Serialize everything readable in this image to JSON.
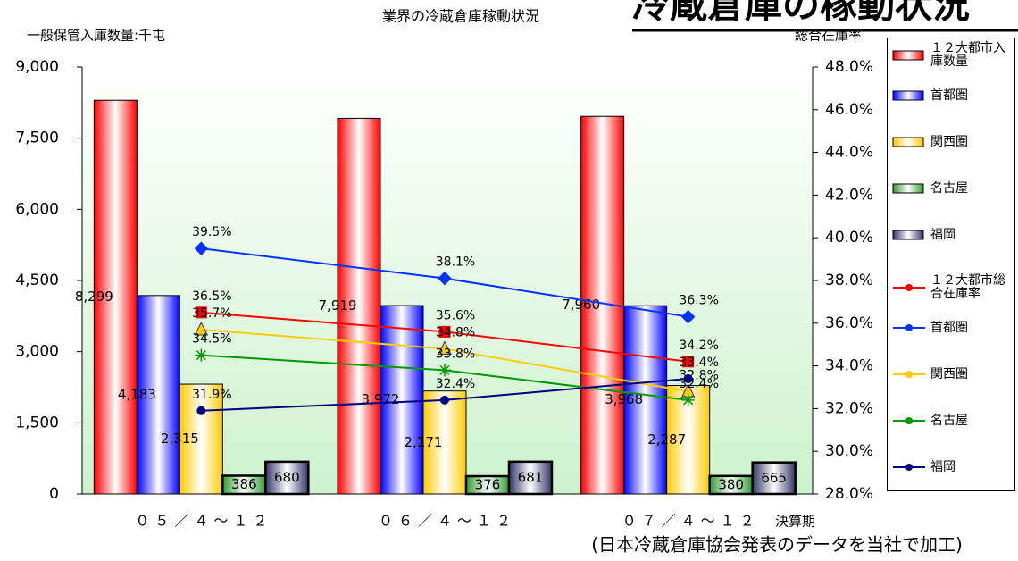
{
  "chart_data": {
    "type": "bar-line",
    "title": "冷蔵倉庫の稼動状況",
    "subtitle": "業界の冷蔵倉庫稼動状況",
    "ylabel": "一般保管入庫数量:千屯",
    "y2label": "総合在庫率",
    "xlabel": "決算期",
    "note": "(日本冷蔵倉庫協会発表のデータを当社で加工)",
    "categories": [
      "０５／４～１２",
      "０６／４～１２",
      "０７／４～１２"
    ],
    "ylim": [
      0,
      9000
    ],
    "yticks": [
      0,
      {
        "value": 1500,
        "label": "1,500"
      },
      {
        "value": 3000,
        "label": "3,000"
      },
      {
        "value": 4500,
        "label": "4,500"
      },
      {
        "value": 6000,
        "label": "6,000"
      },
      {
        "value": 7500,
        "label": "7,500"
      },
      {
        "value": 9000,
        "label": "9,000"
      }
    ],
    "y2lim": [
      28,
      48
    ],
    "y2ticks": [
      {
        "value": 28,
        "label": "28.0%"
      },
      {
        "value": 30,
        "label": "30.0%"
      },
      {
        "value": 32,
        "label": "32.0%"
      },
      {
        "value": 34,
        "label": "34.0%"
      },
      {
        "value": 36,
        "label": "36.0%"
      },
      {
        "value": 38,
        "label": "38.0%"
      },
      {
        "value": 40,
        "label": "40.0%"
      },
      {
        "value": 42,
        "label": "42.0%"
      },
      {
        "value": 44,
        "label": "44.0%"
      },
      {
        "value": 46,
        "label": "46.0%"
      },
      {
        "value": 48,
        "label": "48.0%"
      }
    ],
    "series": [
      {
        "name": "１２大都市入庫数量",
        "type": "bar",
        "color": "#ff0000",
        "values": [
          8299,
          7919,
          7960
        ],
        "value_labels": [
          "8,299",
          "7,919",
          "7,960"
        ]
      },
      {
        "name": "首都圏",
        "type": "bar",
        "color": "#0000ff",
        "values": [
          4183,
          3972,
          3968
        ],
        "value_labels": [
          "4,183",
          "3,972",
          "3,968"
        ]
      },
      {
        "name": "関西圏",
        "type": "bar",
        "color": "#ffcc00",
        "values": [
          2315,
          2171,
          2287
        ],
        "value_labels": [
          "2,315",
          "2,171",
          "2,287"
        ]
      },
      {
        "name": "名古屋",
        "type": "bar",
        "color": "#339933",
        "values": [
          386,
          376,
          380
        ]
      },
      {
        "name": "福岡",
        "type": "bar",
        "color": "#333366",
        "values": [
          680,
          681,
          665
        ]
      },
      {
        "name": "１２大都市総合在庫率",
        "type": "line",
        "axis": "y2",
        "marker": "square",
        "color": "#ff0000",
        "values": [
          36.5,
          35.6,
          34.2
        ],
        "value_labels": [
          "36.5%",
          "35.6%",
          "34.2%"
        ]
      },
      {
        "name": "首都圏",
        "type": "line",
        "axis": "y2",
        "marker": "diamond",
        "color": "#0033ff",
        "values": [
          39.5,
          38.1,
          36.3
        ],
        "value_labels": [
          "39.5%",
          "38.1%",
          "36.3%"
        ]
      },
      {
        "name": "関西圏",
        "type": "line",
        "axis": "y2",
        "marker": "triangle",
        "color": "#ffcc00",
        "values": [
          35.7,
          34.8,
          32.8
        ],
        "value_labels": [
          "35.7%",
          "34.8%",
          "32.8%"
        ]
      },
      {
        "name": "名古屋",
        "type": "line",
        "axis": "y2",
        "marker": "star",
        "color": "#009900",
        "values": [
          34.5,
          33.8,
          32.4
        ],
        "value_labels": [
          "34.5%",
          "33.8%",
          "32.4%"
        ]
      },
      {
        "name": "福岡",
        "type": "line",
        "axis": "y2",
        "marker": "circle",
        "color": "#000080",
        "values": [
          31.9,
          32.4,
          33.4
        ],
        "value_labels": [
          "31.9%",
          "32.4%",
          "33.4%"
        ]
      }
    ]
  }
}
